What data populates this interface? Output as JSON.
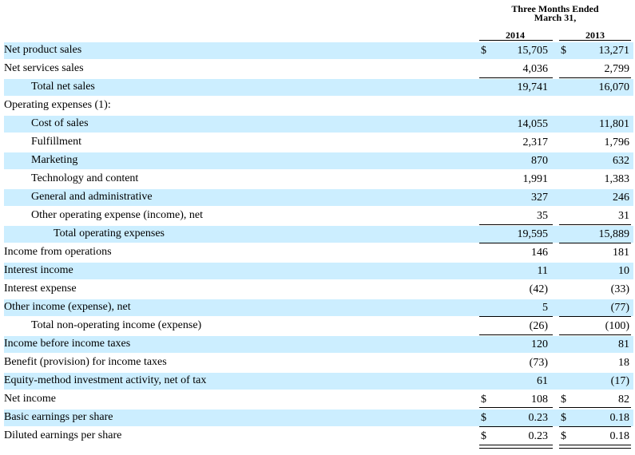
{
  "header": {
    "line1": "Three Months Ended",
    "line2": "March 31,",
    "year1": "2014",
    "year2": "2013"
  },
  "rows": [
    {
      "label": "Net product sales",
      "d1": "$",
      "v1": "15,705",
      "d2": "$",
      "v2": "13,271"
    },
    {
      "label": "Net services sales",
      "d1": "",
      "v1": "4,036",
      "d2": "",
      "v2": "2,799"
    },
    {
      "label": "Total net sales",
      "d1": "",
      "v1": "19,741",
      "d2": "",
      "v2": "16,070"
    },
    {
      "label": "Operating expenses (1):",
      "d1": "",
      "v1": "",
      "d2": "",
      "v2": ""
    },
    {
      "label": "Cost of sales",
      "d1": "",
      "v1": "14,055",
      "d2": "",
      "v2": "11,801"
    },
    {
      "label": "Fulfillment",
      "d1": "",
      "v1": "2,317",
      "d2": "",
      "v2": "1,796"
    },
    {
      "label": "Marketing",
      "d1": "",
      "v1": "870",
      "d2": "",
      "v2": "632"
    },
    {
      "label": "Technology and content",
      "d1": "",
      "v1": "1,991",
      "d2": "",
      "v2": "1,383"
    },
    {
      "label": "General and administrative",
      "d1": "",
      "v1": "327",
      "d2": "",
      "v2": "246"
    },
    {
      "label": "Other operating expense (income), net",
      "d1": "",
      "v1": "35",
      "d2": "",
      "v2": "31"
    },
    {
      "label": "Total operating expenses",
      "d1": "",
      "v1": "19,595",
      "d2": "",
      "v2": "15,889"
    },
    {
      "label": "Income from operations",
      "d1": "",
      "v1": "146",
      "d2": "",
      "v2": "181"
    },
    {
      "label": "Interest income",
      "d1": "",
      "v1": "11",
      "d2": "",
      "v2": "10"
    },
    {
      "label": "Interest expense",
      "d1": "",
      "v1": "(42)",
      "d2": "",
      "v2": "(33)"
    },
    {
      "label": "Other income (expense), net",
      "d1": "",
      "v1": "5",
      "d2": "",
      "v2": "(77)"
    },
    {
      "label": "Total non-operating income (expense)",
      "d1": "",
      "v1": "(26)",
      "d2": "",
      "v2": "(100)"
    },
    {
      "label": "Income before income taxes",
      "d1": "",
      "v1": "120",
      "d2": "",
      "v2": "81"
    },
    {
      "label": "Benefit (provision) for income taxes",
      "d1": "",
      "v1": "(73)",
      "d2": "",
      "v2": "18"
    },
    {
      "label": "Equity-method investment activity, net of tax",
      "d1": "",
      "v1": "61",
      "d2": "",
      "v2": "(17)"
    },
    {
      "label": "Net income",
      "d1": "$",
      "v1": "108",
      "d2": "$",
      "v2": "82"
    },
    {
      "label": "Basic earnings per share",
      "d1": "$",
      "v1": "0.23",
      "d2": "$",
      "v2": "0.18"
    },
    {
      "label": "Diluted earnings per share",
      "d1": "$",
      "v1": "0.23",
      "d2": "$",
      "v2": "0.18"
    }
  ]
}
